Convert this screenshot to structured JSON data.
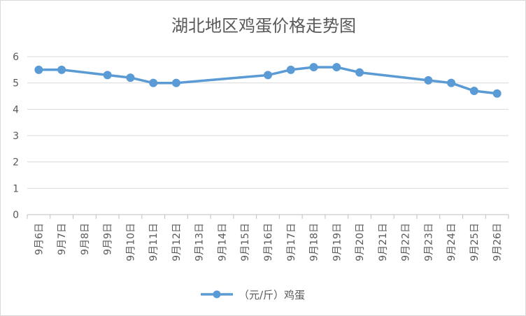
{
  "chart_data": {
    "type": "line",
    "title": "湖北地区鸡蛋价格走势图",
    "categories": [
      "9月6日",
      "9月7日",
      "9月8日",
      "9月9日",
      "9月10日",
      "9月11日",
      "9月12日",
      "9月13日",
      "9月14日",
      "9月15日",
      "9月16日",
      "9月17日",
      "9月18日",
      "9月19日",
      "9月20日",
      "9月21日",
      "9月22日",
      "9月23日",
      "9月24日",
      "9月25日",
      "9月26日"
    ],
    "series": [
      {
        "name": "（元/斤）鸡蛋",
        "color": "#5b9bd5",
        "values": [
          5.5,
          5.5,
          null,
          5.3,
          5.2,
          5.0,
          5.0,
          null,
          null,
          null,
          5.3,
          5.5,
          5.6,
          5.6,
          5.4,
          null,
          null,
          5.1,
          5.0,
          4.7,
          4.6
        ]
      }
    ],
    "yticks": [
      "0",
      "1",
      "2",
      "3",
      "4",
      "5",
      "6"
    ],
    "ylim": [
      0,
      6
    ],
    "grid": true,
    "legend_position": "bottom"
  }
}
